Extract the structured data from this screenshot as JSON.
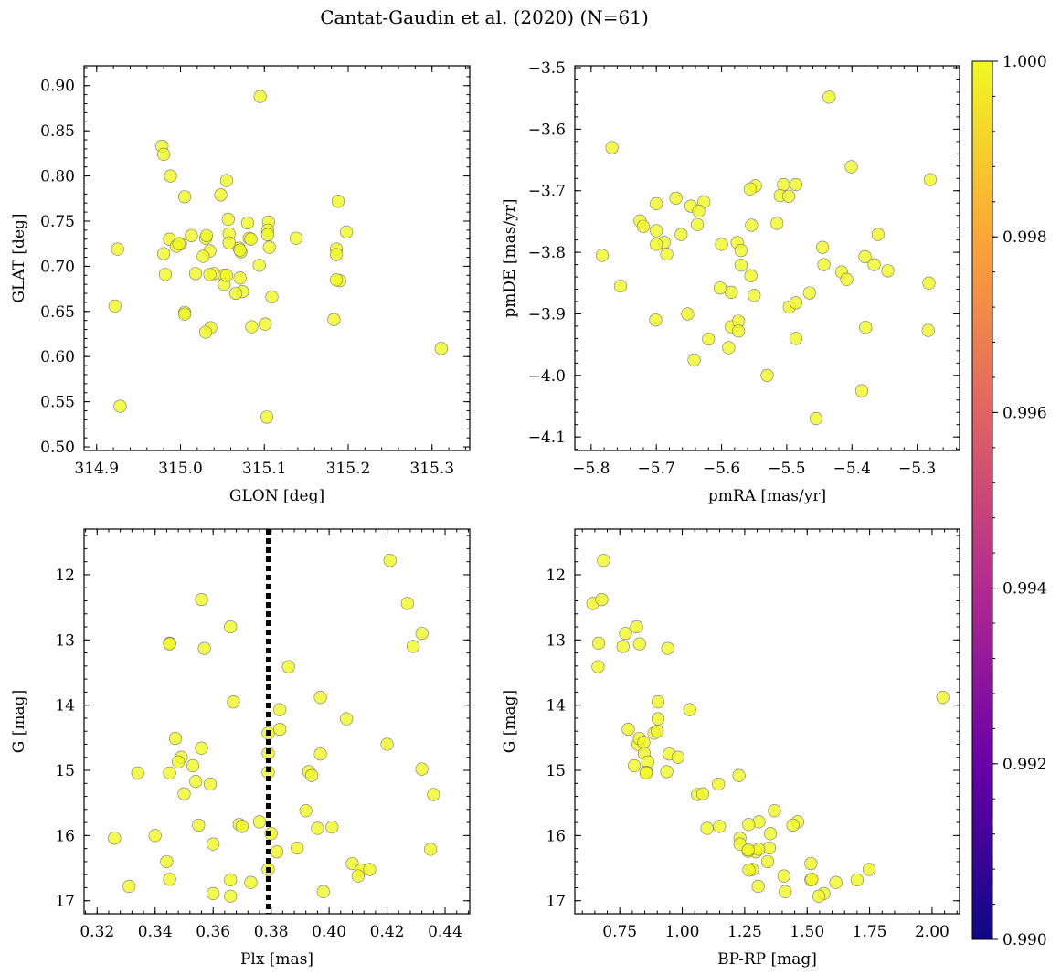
{
  "figure_title": "Cantat-Gaudin et al. (2020) (N=61)",
  "chart_data": [
    {
      "id": "p1",
      "type": "scatter",
      "xlabel": "GLON [deg]",
      "ylabel": "GLAT [deg]",
      "xlim": [
        314.885,
        315.345
      ],
      "ylim": [
        0.496,
        0.922
      ],
      "invert_y": false,
      "xticks": [
        314.9,
        315.0,
        315.1,
        315.2,
        315.3
      ],
      "xtick_labels": [
        "314.9",
        "315.0",
        "315.1",
        "315.2",
        "315.3"
      ],
      "yticks": [
        0.5,
        0.55,
        0.6,
        0.65,
        0.7,
        0.75,
        0.8,
        0.85,
        0.9
      ],
      "ytick_labels": [
        "0.50",
        "0.55",
        "0.60",
        "0.65",
        "0.70",
        "0.75",
        "0.80",
        "0.85",
        "0.90"
      ],
      "x": [
        315.095,
        314.978,
        314.98,
        314.988,
        315.055,
        315.005,
        315.048,
        315.188,
        315.057,
        315.08,
        315.105,
        315.198,
        315.138,
        315.058,
        315.013,
        314.987,
        315.104,
        315.106,
        315.07,
        315.03,
        315.0,
        314.925,
        314.98,
        314.995,
        315.035,
        315.072,
        315.082,
        315.058,
        315.186,
        315.186,
        315.19,
        315.027,
        315.04,
        315.052,
        315.094,
        315.018,
        315.074,
        315.104,
        315.052,
        315.035,
        315.071,
        315.055,
        315.066,
        315.084,
        315.109,
        315.186,
        315.005,
        315.005,
        315.101,
        315.036,
        315.03,
        314.922,
        315.183,
        315.085,
        315.071,
        315.031,
        314.982,
        314.998,
        315.311,
        314.928,
        315.103
      ],
      "y": [
        0.888,
        0.833,
        0.824,
        0.8,
        0.795,
        0.777,
        0.779,
        0.772,
        0.752,
        0.748,
        0.749,
        0.738,
        0.731,
        0.736,
        0.734,
        0.73,
        0.74,
        0.721,
        0.72,
        0.731,
        0.725,
        0.719,
        0.714,
        0.722,
        0.717,
        0.716,
        0.731,
        0.726,
        0.719,
        0.713,
        0.684,
        0.711,
        0.692,
        0.69,
        0.701,
        0.692,
        0.672,
        0.735,
        0.68,
        0.691,
        0.687,
        0.69,
        0.67,
        0.73,
        0.666,
        0.685,
        0.649,
        0.647,
        0.636,
        0.632,
        0.627,
        0.656,
        0.641,
        0.633,
        0.718,
        0.734,
        0.691,
        0.725,
        0.609,
        0.545,
        0.533
      ]
    },
    {
      "id": "p2",
      "type": "scatter",
      "xlabel": "pmRA [mas/yr]",
      "ylabel": "pmDE [mas/yr]",
      "xlim": [
        -5.825,
        -5.235
      ],
      "ylim": [
        -4.122,
        -3.497
      ],
      "invert_y": false,
      "xticks": [
        -5.8,
        -5.7,
        -5.6,
        -5.5,
        -5.4,
        -5.3
      ],
      "xtick_labels": [
        "−5.8",
        "−5.7",
        "−5.6",
        "−5.5",
        "−5.4",
        "−5.3"
      ],
      "yticks": [
        -4.1,
        -4.0,
        -3.9,
        -3.8,
        -3.7,
        -3.6,
        -3.5
      ],
      "ytick_labels": [
        "−4.1",
        "−4.0",
        "−3.9",
        "−3.8",
        "−3.7",
        "−3.6",
        "−3.5"
      ],
      "x": [
        -5.435,
        -5.768,
        -5.401,
        -5.28,
        -5.548,
        -5.556,
        -5.505,
        -5.51,
        -5.497,
        -5.67,
        -5.7,
        -5.627,
        -5.647,
        -5.635,
        -5.725,
        -5.72,
        -5.7,
        -5.688,
        -5.662,
        -5.637,
        -5.515,
        -5.554,
        -5.486,
        -5.36,
        -5.6,
        -5.576,
        -5.57,
        -5.7,
        -5.684,
        -5.783,
        -5.445,
        -5.38,
        -5.366,
        -5.416,
        -5.345,
        -5.408,
        -5.57,
        -5.555,
        -5.585,
        -5.443,
        -5.602,
        -5.755,
        -5.55,
        -5.465,
        -5.496,
        -5.486,
        -5.652,
        -5.585,
        -5.574,
        -5.574,
        -5.379,
        -5.282,
        -5.486,
        -5.62,
        -5.589,
        -5.642,
        -5.53,
        -5.385,
        -5.455,
        -5.283,
        -5.701
      ],
      "y": [
        -3.548,
        -3.63,
        -3.661,
        -3.682,
        -3.692,
        -3.697,
        -3.69,
        -3.708,
        -3.709,
        -3.712,
        -3.721,
        -3.718,
        -3.725,
        -3.733,
        -3.749,
        -3.758,
        -3.765,
        -3.784,
        -3.771,
        -3.755,
        -3.753,
        -3.756,
        -3.69,
        -3.771,
        -3.787,
        -3.784,
        -3.797,
        -3.787,
        -3.803,
        -3.805,
        -3.792,
        -3.807,
        -3.82,
        -3.832,
        -3.83,
        -3.844,
        -3.821,
        -3.838,
        -3.865,
        -3.82,
        -3.858,
        -3.855,
        -3.87,
        -3.866,
        -3.889,
        -3.882,
        -3.9,
        -3.921,
        -3.912,
        -3.928,
        -3.922,
        -3.85,
        -3.94,
        -3.941,
        -3.955,
        -3.975,
        -4.0,
        -4.025,
        -4.07,
        -3.927,
        -3.91
      ]
    },
    {
      "id": "p3",
      "type": "scatter",
      "xlabel": "Plx [mas]",
      "ylabel": "G [mag]",
      "xlim": [
        0.3155,
        0.4485
      ],
      "ylim": [
        11.3,
        17.2
      ],
      "invert_y": true,
      "vline": 0.379,
      "xticks": [
        0.32,
        0.34,
        0.36,
        0.38,
        0.4,
        0.42,
        0.44
      ],
      "xtick_labels": [
        "0.32",
        "0.34",
        "0.36",
        "0.38",
        "0.40",
        "0.42",
        "0.44"
      ],
      "yticks": [
        12,
        13,
        14,
        15,
        16,
        17
      ],
      "ytick_labels": [
        "12",
        "13",
        "14",
        "15",
        "16",
        "17"
      ],
      "x": [
        0.421,
        0.356,
        0.427,
        0.366,
        0.432,
        0.345,
        0.345,
        0.429,
        0.357,
        0.386,
        0.367,
        0.397,
        0.383,
        0.406,
        0.379,
        0.383,
        0.347,
        0.42,
        0.356,
        0.349,
        0.379,
        0.397,
        0.353,
        0.432,
        0.348,
        0.379,
        0.334,
        0.393,
        0.394,
        0.359,
        0.354,
        0.436,
        0.35,
        0.392,
        0.369,
        0.355,
        0.37,
        0.401,
        0.38,
        0.396,
        0.34,
        0.326,
        0.36,
        0.382,
        0.389,
        0.435,
        0.379,
        0.344,
        0.408,
        0.411,
        0.414,
        0.41,
        0.345,
        0.366,
        0.373,
        0.331,
        0.398,
        0.36,
        0.366,
        0.376,
        0.345
      ],
      "y": [
        11.78,
        12.38,
        12.44,
        12.8,
        12.9,
        13.05,
        13.06,
        13.1,
        13.13,
        13.41,
        13.95,
        13.88,
        14.07,
        14.21,
        14.43,
        14.37,
        14.51,
        14.6,
        14.66,
        14.8,
        14.74,
        14.75,
        14.93,
        14.98,
        14.87,
        15.03,
        15.04,
        15.02,
        15.08,
        15.21,
        15.17,
        15.37,
        15.36,
        15.62,
        15.83,
        15.84,
        15.86,
        15.87,
        15.97,
        15.89,
        16.0,
        16.04,
        16.13,
        16.25,
        16.19,
        16.21,
        16.52,
        16.4,
        16.43,
        16.53,
        16.52,
        16.62,
        16.67,
        16.68,
        16.72,
        16.78,
        16.86,
        16.89,
        16.93,
        15.79,
        15.04
      ]
    },
    {
      "id": "p4",
      "type": "scatter",
      "xlabel": "BP-RP [mag]",
      "ylabel": "G [mag]",
      "xlim": [
        0.57,
        2.11
      ],
      "ylim": [
        11.3,
        17.2
      ],
      "invert_y": true,
      "xticks": [
        0.75,
        1.0,
        1.25,
        1.5,
        1.75,
        2.0
      ],
      "xtick_labels": [
        "0.75",
        "1.00",
        "1.25",
        "1.50",
        "1.75",
        "2.00"
      ],
      "yticks": [
        12,
        13,
        14,
        15,
        16,
        17
      ],
      "ytick_labels": [
        "12",
        "13",
        "14",
        "15",
        "16",
        "17"
      ],
      "x": [
        0.685,
        0.642,
        0.678,
        0.817,
        0.773,
        0.665,
        0.763,
        0.829,
        0.942,
        0.663,
        2.043,
        0.903,
        0.903,
        1.03,
        0.784,
        0.887,
        0.9,
        0.823,
        0.828,
        0.846,
        0.848,
        0.808,
        0.862,
        0.948,
        0.983,
        0.857,
        0.938,
        0.855,
        1.227,
        1.145,
        1.061,
        1.082,
        1.369,
        1.462,
        1.443,
        1.307,
        1.266,
        1.353,
        1.149,
        1.099,
        1.231,
        1.231,
        1.349,
        1.295,
        1.264,
        1.306,
        1.515,
        1.342,
        1.515,
        1.281,
        1.267,
        1.748,
        1.407,
        1.519,
        1.304,
        1.7,
        1.615,
        1.567,
        1.547,
        1.412,
        1.264
      ],
      "y": [
        11.78,
        12.44,
        12.38,
        12.8,
        12.9,
        13.05,
        13.1,
        13.06,
        13.13,
        13.41,
        13.88,
        13.95,
        14.21,
        14.07,
        14.37,
        14.43,
        14.4,
        14.6,
        14.51,
        14.57,
        14.74,
        14.93,
        14.87,
        14.75,
        14.8,
        15.03,
        15.02,
        15.04,
        15.08,
        15.21,
        15.37,
        15.36,
        15.62,
        15.79,
        15.84,
        15.79,
        15.83,
        15.97,
        15.86,
        15.89,
        16.04,
        16.13,
        16.19,
        16.25,
        16.24,
        16.21,
        16.43,
        16.4,
        16.68,
        16.52,
        16.53,
        16.52,
        16.62,
        16.67,
        16.78,
        16.68,
        16.72,
        16.89,
        16.93,
        16.86,
        16.22
      ]
    }
  ],
  "colorbar": {
    "min": 0.99,
    "max": 1.0,
    "ticks": [
      0.99,
      0.992,
      0.994,
      0.996,
      0.998,
      1.0
    ],
    "tick_labels": [
      "0.990",
      "0.992",
      "0.994",
      "0.996",
      "0.998",
      "1.000"
    ],
    "colors": [
      "#0d0887",
      "#6a00a8",
      "#b12a90",
      "#e16462",
      "#fca636",
      "#f0f921"
    ],
    "point_color": "#f0f921"
  }
}
